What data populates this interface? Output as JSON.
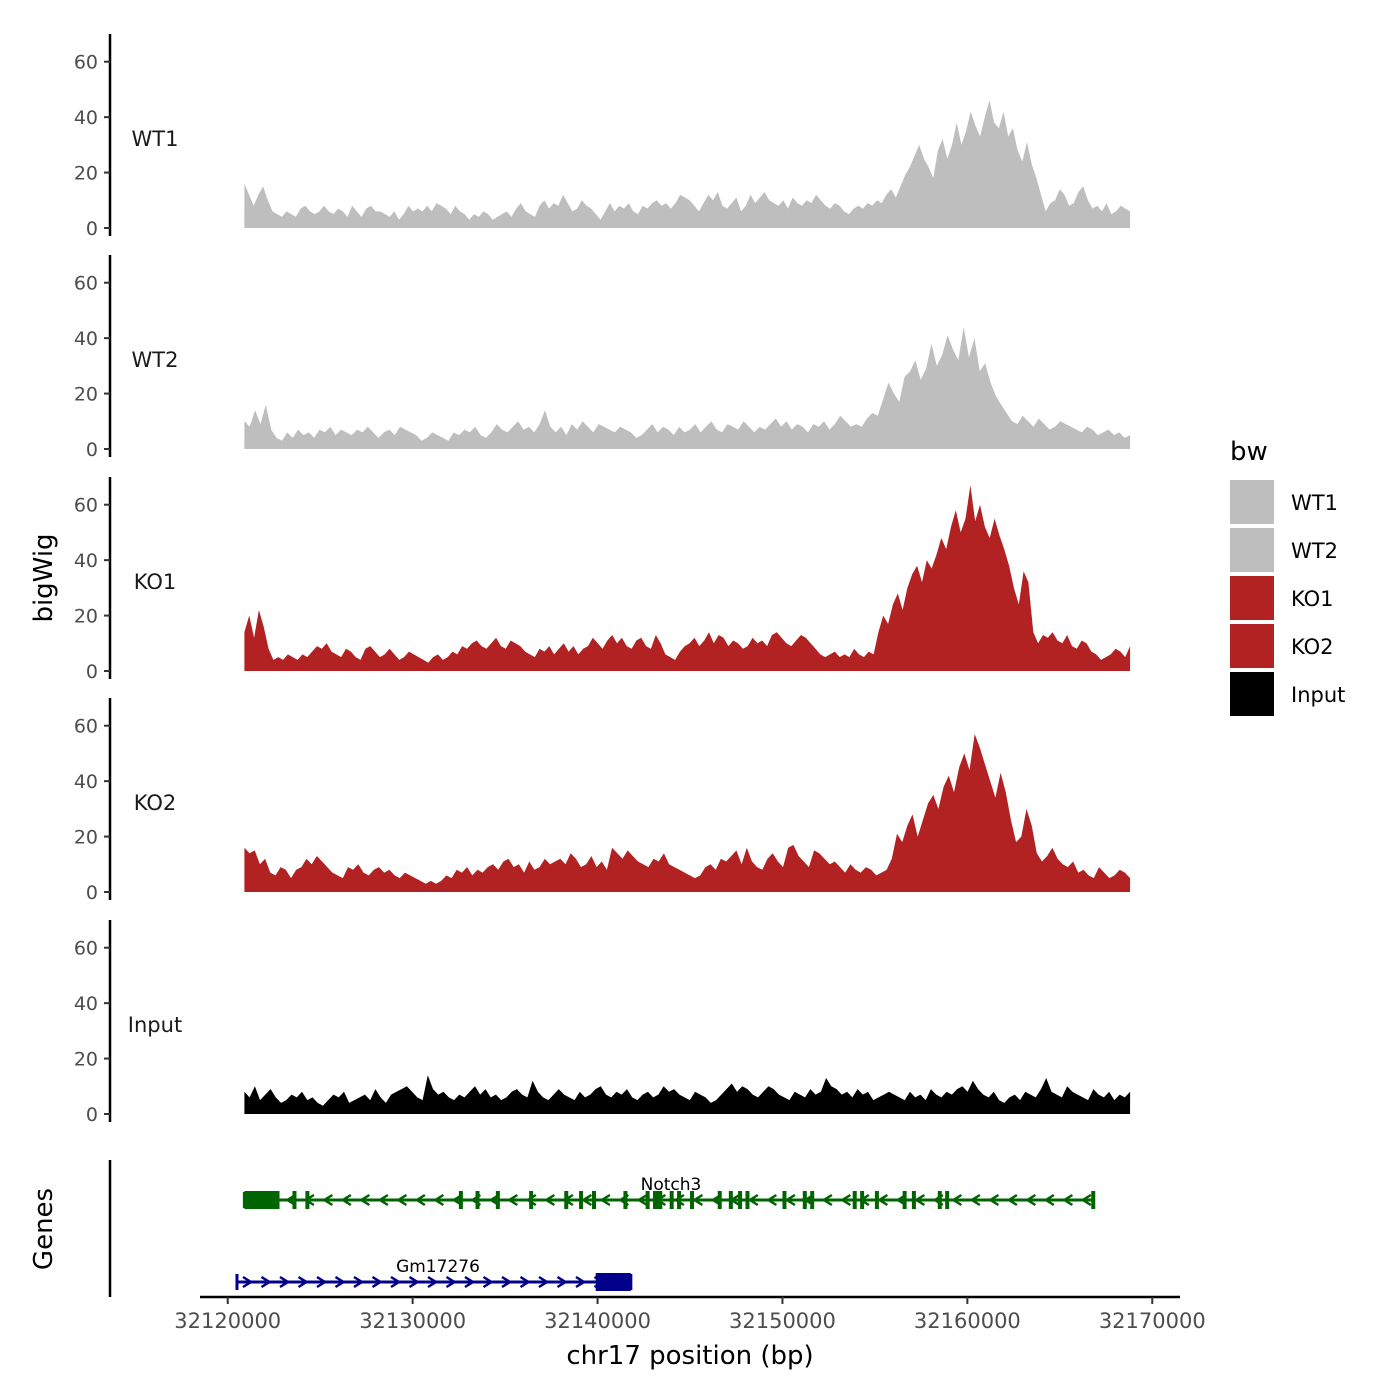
{
  "chart_data": {
    "type": "area",
    "title": "",
    "ylabel": "bigWig",
    "xlabel": "chr17 position (bp)",
    "genes_label": "Genes",
    "legend": {
      "title": "bw",
      "position": "right",
      "entries": [
        {
          "label": "WT1",
          "color": "#BEBEBE"
        },
        {
          "label": "WT2",
          "color": "#BEBEBE"
        },
        {
          "label": "KO1",
          "color": "#B22222"
        },
        {
          "label": "KO2",
          "color": "#B22222"
        },
        {
          "label": "Input",
          "color": "#000000"
        }
      ]
    },
    "xlim": [
      32118500,
      32171500
    ],
    "x_tick_values": [
      32120000,
      32130000,
      32140000,
      32150000,
      32160000,
      32170000
    ],
    "x_tick_labels": [
      "32120000",
      "32130000",
      "32140000",
      "32150000",
      "32160000",
      "32170000"
    ],
    "ylim": [
      0,
      70
    ],
    "y_tick_values": [
      0,
      20,
      40,
      60
    ],
    "y_tick_labels": [
      "0",
      "20",
      "40",
      "60"
    ],
    "data_range": [
      32120900,
      32168800
    ],
    "series": [
      {
        "name": "WT1",
        "color": "#BEBEBE",
        "values": [
          16,
          12,
          8,
          12,
          15,
          10,
          6,
          5,
          4,
          6,
          5,
          4,
          7,
          8,
          6,
          5,
          6,
          8,
          6,
          5,
          7,
          6,
          4,
          8,
          6,
          4,
          7,
          8,
          6,
          6,
          5,
          4,
          6,
          3,
          5,
          8,
          6,
          7,
          6,
          8,
          6,
          9,
          8,
          7,
          5,
          8,
          6,
          5,
          3,
          5,
          4,
          6,
          5,
          3,
          4,
          5,
          6,
          4,
          7,
          9,
          6,
          5,
          4,
          8,
          10,
          7,
          9,
          8,
          12,
          9,
          6,
          7,
          10,
          8,
          7,
          5,
          3,
          6,
          9,
          6,
          8,
          7,
          9,
          6,
          5,
          8,
          7,
          9,
          10,
          8,
          9,
          7,
          9,
          12,
          11,
          10,
          8,
          6,
          9,
          12,
          10,
          13,
          8,
          7,
          9,
          11,
          6,
          8,
          12,
          9,
          11,
          13,
          10,
          9,
          8,
          10,
          7,
          11,
          9,
          8,
          10,
          9,
          12,
          10,
          8,
          7,
          9,
          8,
          6,
          5,
          7,
          8,
          7,
          9,
          8,
          10,
          9,
          12,
          14,
          11,
          15,
          19,
          22,
          26,
          30,
          25,
          22,
          18,
          28,
          32,
          25,
          30,
          38,
          30,
          35,
          42,
          37,
          33,
          40,
          46,
          38,
          36,
          42,
          33,
          36,
          28,
          24,
          31,
          23,
          18,
          12,
          6,
          9,
          10,
          14,
          12,
          8,
          9,
          13,
          15,
          10,
          7,
          8,
          6,
          9,
          5,
          6,
          8,
          7,
          6
        ]
      },
      {
        "name": "WT2",
        "color": "#BEBEBE",
        "values": [
          10,
          8,
          14,
          9,
          16,
          7,
          4,
          3,
          6,
          4,
          7,
          5,
          6,
          4,
          7,
          6,
          8,
          5,
          7,
          6,
          5,
          7,
          6,
          8,
          6,
          4,
          6,
          7,
          5,
          8,
          7,
          6,
          5,
          3,
          4,
          6,
          5,
          4,
          3,
          6,
          5,
          7,
          6,
          8,
          5,
          4,
          6,
          9,
          7,
          6,
          8,
          10,
          7,
          8,
          6,
          9,
          14,
          8,
          6,
          8,
          5,
          9,
          7,
          10,
          8,
          6,
          9,
          8,
          7,
          6,
          8,
          7,
          6,
          4,
          5,
          7,
          9,
          6,
          8,
          7,
          5,
          8,
          6,
          7,
          9,
          6,
          8,
          10,
          7,
          6,
          9,
          8,
          7,
          10,
          8,
          6,
          8,
          7,
          9,
          11,
          8,
          10,
          7,
          9,
          8,
          6,
          9,
          8,
          10,
          7,
          9,
          12,
          10,
          8,
          9,
          8,
          11,
          13,
          12,
          18,
          24,
          20,
          17,
          26,
          28,
          32,
          25,
          29,
          38,
          30,
          34,
          41,
          36,
          32,
          44,
          33,
          40,
          28,
          31,
          24,
          19,
          16,
          13,
          10,
          9,
          12,
          10,
          8,
          11,
          9,
          7,
          8,
          10,
          9,
          8,
          7,
          6,
          8,
          7,
          5,
          6,
          7,
          5,
          6,
          4,
          5
        ]
      },
      {
        "name": "KO1",
        "color": "#B22222",
        "values": [
          14,
          20,
          12,
          22,
          16,
          8,
          4,
          5,
          4,
          6,
          5,
          4,
          6,
          5,
          7,
          9,
          8,
          10,
          7,
          6,
          5,
          8,
          7,
          5,
          4,
          8,
          9,
          7,
          5,
          6,
          8,
          6,
          4,
          5,
          7,
          6,
          5,
          4,
          3,
          5,
          6,
          4,
          5,
          7,
          6,
          9,
          8,
          10,
          11,
          9,
          8,
          10,
          12,
          9,
          8,
          11,
          10,
          9,
          7,
          6,
          5,
          8,
          7,
          9,
          6,
          8,
          10,
          7,
          9,
          6,
          8,
          9,
          12,
          10,
          8,
          11,
          13,
          10,
          12,
          9,
          8,
          11,
          12,
          9,
          8,
          13,
          10,
          6,
          5,
          4,
          7,
          9,
          10,
          12,
          9,
          11,
          14,
          10,
          13,
          12,
          9,
          11,
          10,
          8,
          9,
          12,
          10,
          11,
          9,
          13,
          14,
          12,
          10,
          9,
          11,
          13,
          12,
          10,
          8,
          6,
          5,
          6,
          7,
          5,
          6,
          5,
          8,
          6,
          5,
          7,
          6,
          14,
          20,
          17,
          24,
          28,
          22,
          30,
          35,
          38,
          32,
          40,
          37,
          42,
          48,
          44,
          52,
          58,
          50,
          55,
          67,
          54,
          60,
          52,
          48,
          55,
          49,
          44,
          38,
          30,
          24,
          36,
          32,
          14,
          10,
          13,
          12,
          14,
          11,
          10,
          13,
          9,
          8,
          11,
          10,
          7,
          6,
          4,
          5,
          6,
          8,
          7,
          5,
          9
        ]
      },
      {
        "name": "KO2",
        "color": "#B22222",
        "values": [
          16,
          14,
          15,
          10,
          12,
          7,
          6,
          9,
          8,
          5,
          8,
          9,
          12,
          10,
          13,
          11,
          9,
          7,
          6,
          5,
          9,
          8,
          10,
          7,
          6,
          8,
          9,
          7,
          8,
          6,
          5,
          7,
          6,
          5,
          4,
          3,
          4,
          3,
          4,
          6,
          5,
          8,
          7,
          9,
          6,
          8,
          7,
          9,
          10,
          8,
          11,
          12,
          9,
          10,
          7,
          11,
          8,
          9,
          12,
          10,
          11,
          12,
          10,
          14,
          12,
          9,
          10,
          13,
          9,
          11,
          8,
          16,
          14,
          12,
          15,
          13,
          11,
          10,
          9,
          12,
          11,
          14,
          10,
          9,
          8,
          7,
          6,
          5,
          6,
          9,
          10,
          8,
          12,
          11,
          13,
          15,
          10,
          16,
          11,
          9,
          8,
          12,
          14,
          11,
          9,
          16,
          17,
          13,
          11,
          9,
          15,
          14,
          12,
          10,
          11,
          9,
          7,
          10,
          8,
          7,
          9,
          8,
          6,
          7,
          8,
          12,
          21,
          18,
          24,
          28,
          20,
          26,
          32,
          35,
          30,
          38,
          42,
          36,
          45,
          50,
          44,
          57,
          52,
          46,
          40,
          34,
          43,
          36,
          26,
          18,
          20,
          30,
          24,
          14,
          11,
          13,
          16,
          12,
          10,
          9,
          11,
          7,
          8,
          6,
          5,
          9,
          7,
          5,
          6,
          8,
          7,
          5
        ]
      },
      {
        "name": "Input",
        "color": "#000000",
        "values": [
          8,
          6,
          10,
          5,
          7,
          9,
          6,
          4,
          5,
          7,
          6,
          8,
          5,
          6,
          4,
          3,
          5,
          7,
          6,
          8,
          4,
          5,
          6,
          7,
          5,
          9,
          6,
          4,
          7,
          8,
          9,
          10,
          8,
          6,
          5,
          14,
          9,
          7,
          8,
          6,
          5,
          7,
          6,
          8,
          10,
          7,
          9,
          6,
          7,
          5,
          6,
          8,
          9,
          7,
          6,
          12,
          8,
          6,
          5,
          7,
          9,
          7,
          6,
          5,
          8,
          6,
          7,
          9,
          10,
          7,
          6,
          8,
          7,
          9,
          6,
          5,
          7,
          8,
          6,
          7,
          10,
          8,
          9,
          7,
          6,
          5,
          8,
          7,
          6,
          4,
          5,
          7,
          9,
          11,
          8,
          10,
          9,
          7,
          6,
          8,
          10,
          9,
          7,
          6,
          5,
          8,
          7,
          6,
          9,
          7,
          8,
          13,
          10,
          9,
          7,
          8,
          6,
          9,
          7,
          8,
          5,
          6,
          7,
          8,
          7,
          6,
          5,
          8,
          6,
          7,
          5,
          9,
          7,
          6,
          8,
          7,
          9,
          10,
          8,
          12,
          9,
          7,
          6,
          8,
          5,
          4,
          6,
          7,
          5,
          8,
          7,
          6,
          9,
          13,
          8,
          7,
          6,
          10,
          8,
          7,
          6,
          5,
          9,
          7,
          6,
          8,
          5,
          7,
          6,
          8
        ]
      }
    ],
    "genes": [
      {
        "name": "Gm17276",
        "strand": "+",
        "color": "#00008B",
        "start": 32120500,
        "end": 32141800,
        "exons": [
          [
            32139900,
            32141800
          ]
        ]
      },
      {
        "name": "Notch3",
        "strand": "-",
        "color": "#006400",
        "start": 32120900,
        "end": 32166800,
        "exons": [
          [
            32120900,
            32122800
          ],
          [
            32123500,
            32123600
          ],
          [
            32124200,
            32124300
          ],
          [
            32132500,
            32132600
          ],
          [
            32133400,
            32133600
          ],
          [
            32134500,
            32134600
          ],
          [
            32136300,
            32136400
          ],
          [
            32138200,
            32138300
          ],
          [
            32139000,
            32139100
          ],
          [
            32139700,
            32139900
          ],
          [
            32141400,
            32141600
          ],
          [
            32142600,
            32142700
          ],
          [
            32143000,
            32143500
          ],
          [
            32143900,
            32144000
          ],
          [
            32144300,
            32144500
          ],
          [
            32145000,
            32145100
          ],
          [
            32146500,
            32146600
          ],
          [
            32147100,
            32147200
          ],
          [
            32147600,
            32147700
          ],
          [
            32148000,
            32148100
          ],
          [
            32150000,
            32150100
          ],
          [
            32151100,
            32151200
          ],
          [
            32151500,
            32151600
          ],
          [
            32153800,
            32153900
          ],
          [
            32154200,
            32154300
          ],
          [
            32155000,
            32155100
          ],
          [
            32156500,
            32156600
          ],
          [
            32157000,
            32157100
          ],
          [
            32158400,
            32158500
          ],
          [
            32158800,
            32159000
          ],
          [
            32166700,
            32166800
          ]
        ]
      }
    ]
  }
}
